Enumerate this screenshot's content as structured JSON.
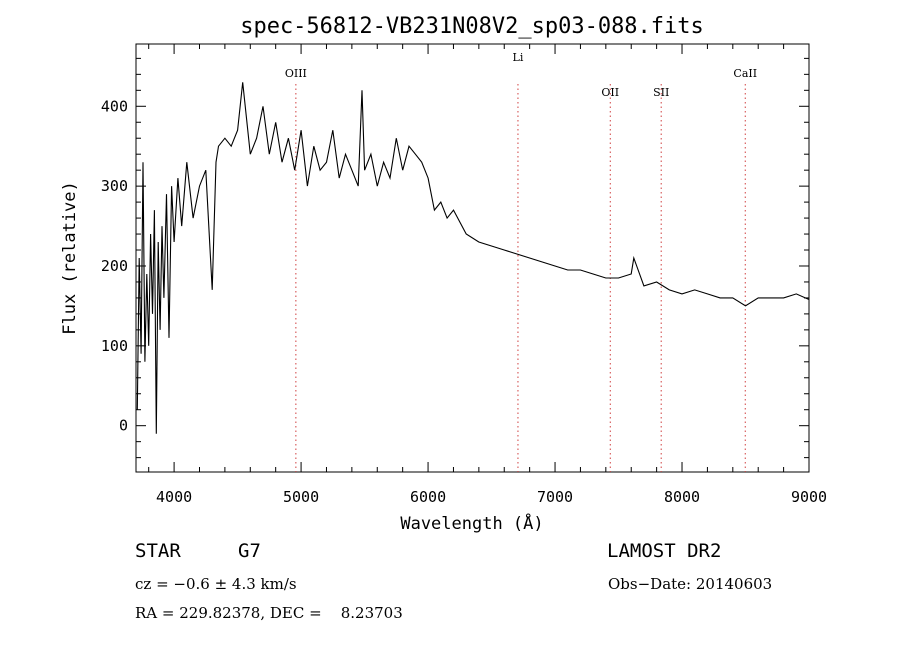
{
  "chart_data": {
    "type": "line",
    "title": "spec-56812-VB231N08V2_sp03-088.fits",
    "xlabel": "Wavelength (Å)",
    "ylabel": "Flux (relative)",
    "xlim": [
      3700,
      9000
    ],
    "ylim": [
      -58,
      478
    ],
    "xticks": [
      4000,
      5000,
      6000,
      7000,
      8000,
      9000
    ],
    "yticks": [
      0,
      100,
      200,
      300,
      400
    ],
    "grid": false,
    "line_color": "#000000",
    "marker_color": "#d04040",
    "line_markers": [
      {
        "name": "OIII",
        "x": 4959
      },
      {
        "name": "Li",
        "x": 6708
      },
      {
        "name": "OII",
        "x": 7435
      },
      {
        "name": "SII",
        "x": 7836
      },
      {
        "name": "CaII",
        "x": 8498
      }
    ],
    "series": [
      {
        "x": [
          3710,
          3725,
          3740,
          3755,
          3770,
          3785,
          3800,
          3815,
          3830,
          3845,
          3860,
          3875,
          3890,
          3905,
          3920,
          3940,
          3960,
          3980,
          4000,
          4030,
          4060,
          4100,
          4150,
          4200,
          4250,
          4300,
          4330,
          4350,
          4400,
          4450,
          4500,
          4540,
          4600,
          4650,
          4700,
          4750,
          4800,
          4850,
          4900,
          4950,
          5000,
          5050,
          5100,
          5150,
          5200,
          5250,
          5300,
          5350,
          5400,
          5450,
          5480,
          5500,
          5550,
          5600,
          5650,
          5700,
          5750,
          5800,
          5850,
          5900,
          5950,
          6000,
          6050,
          6100,
          6150,
          6200,
          6300,
          6400,
          6500,
          6600,
          6700,
          6800,
          6900,
          7000,
          7100,
          7200,
          7300,
          7400,
          7500,
          7600,
          7620,
          7700,
          7800,
          7900,
          8000,
          8100,
          8200,
          8300,
          8400,
          8500,
          8600,
          8700,
          8800,
          8900,
          9000
        ],
        "y": [
          20,
          210,
          90,
          330,
          80,
          190,
          100,
          240,
          140,
          270,
          -10,
          230,
          120,
          250,
          160,
          290,
          110,
          300,
          230,
          310,
          250,
          330,
          260,
          300,
          320,
          170,
          330,
          350,
          360,
          350,
          370,
          430,
          340,
          360,
          400,
          340,
          380,
          330,
          360,
          320,
          370,
          300,
          350,
          320,
          330,
          370,
          310,
          340,
          320,
          300,
          420,
          320,
          340,
          300,
          330,
          310,
          360,
          320,
          350,
          340,
          330,
          310,
          270,
          280,
          260,
          270,
          240,
          230,
          225,
          220,
          215,
          210,
          205,
          200,
          195,
          195,
          190,
          185,
          185,
          190,
          210,
          175,
          180,
          170,
          165,
          170,
          165,
          160,
          160,
          150,
          160,
          160,
          160,
          165,
          158
        ]
      }
    ]
  },
  "info": {
    "object_type": "STAR",
    "subclass": "G7",
    "survey": "LAMOST DR2",
    "cz": "cz = −0.6 ± 4.3 km/s",
    "obs_date": "Obs−Date: 20140603",
    "coords": "RA = 229.82378, DEC =    8.23703"
  }
}
